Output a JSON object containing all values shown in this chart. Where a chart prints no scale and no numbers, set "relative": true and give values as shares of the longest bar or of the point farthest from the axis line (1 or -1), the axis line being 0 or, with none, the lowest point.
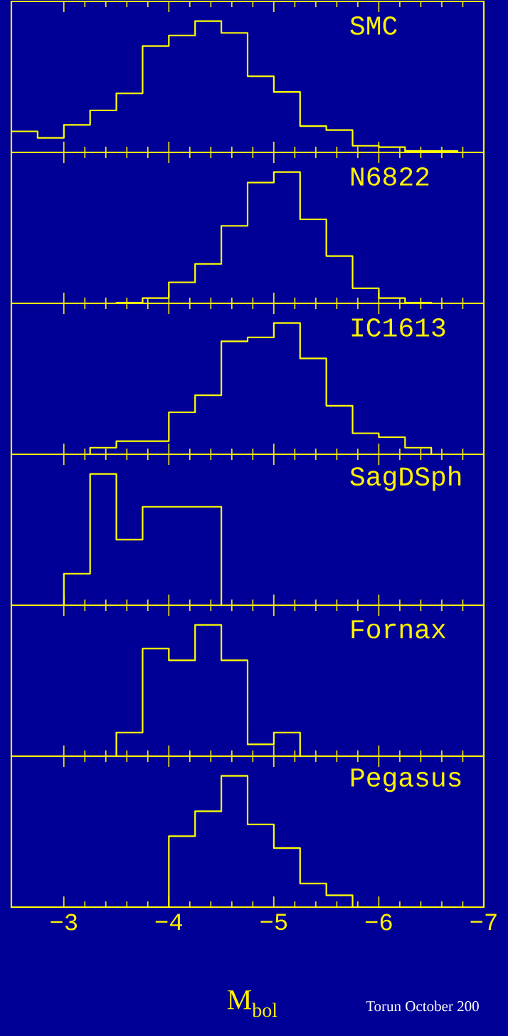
{
  "chart_data": [
    {
      "type": "step",
      "title": "SMC",
      "relative": true,
      "color": "#ffff00",
      "xlim": [
        -2.5,
        -7
      ],
      "tick_labels": false,
      "xticks": [
        -3,
        -4,
        -5,
        -6,
        -7
      ],
      "x": [
        -2.5,
        -2.75,
        -3,
        -3.25,
        -3.5,
        -3.75,
        -4,
        -4.25,
        -4.5,
        -4.75,
        -5,
        -5.25,
        -5.5,
        -5.75,
        -6,
        -6.25,
        -6.5,
        -6.75
      ],
      "values": [
        0.16,
        0.11,
        0.21,
        0.32,
        0.45,
        0.81,
        0.89,
        1,
        0.91,
        0.58,
        0.46,
        0.2,
        0.17,
        0.05,
        0.04,
        0.01,
        0.01,
        0
      ]
    },
    {
      "type": "step",
      "title": "N6822",
      "relative": true,
      "color": "#ffff00",
      "xlim": [
        -2.5,
        -7
      ],
      "tick_labels": false,
      "xticks": [
        -3,
        -4,
        -5,
        -6,
        -7
      ],
      "x": [
        -2.5,
        -2.75,
        -3,
        -3.25,
        -3.5,
        -3.75,
        -4,
        -4.25,
        -4.5,
        -4.75,
        -5,
        -5.25,
        -5.5,
        -5.75,
        -6,
        -6.25,
        -6.5,
        -6.75
      ],
      "values": [
        0,
        0,
        0,
        0,
        0.005,
        0.04,
        0.16,
        0.3,
        0.59,
        0.92,
        1,
        0.64,
        0.36,
        0.115,
        0.04,
        0.005,
        0,
        0
      ]
    },
    {
      "type": "step",
      "title": "IC1613",
      "relative": true,
      "color": "#ffff00",
      "xlim": [
        -2.5,
        -7
      ],
      "tick_labels": false,
      "xticks": [
        -3,
        -4,
        -5,
        -6,
        -7
      ],
      "x": [
        -2.5,
        -2.75,
        -3,
        -3.25,
        -3.5,
        -3.75,
        -4,
        -4.25,
        -4.5,
        -4.75,
        -5,
        -5.25,
        -5.5,
        -5.75,
        -6,
        -6.25,
        -6.5,
        -6.75
      ],
      "values": [
        0,
        0,
        0,
        0.05,
        0.1,
        0.1,
        0.32,
        0.45,
        0.86,
        0.89,
        1,
        0.73,
        0.37,
        0.16,
        0.13,
        0.05,
        0,
        0
      ]
    },
    {
      "type": "step",
      "title": "SagDSph",
      "relative": true,
      "color": "#ffff00",
      "xlim": [
        -2.5,
        -7
      ],
      "tick_labels": false,
      "xticks": [
        -3,
        -4,
        -5,
        -6,
        -7
      ],
      "x": [
        -2.5,
        -2.75,
        -3,
        -3.25,
        -3.5,
        -3.75,
        -4,
        -4.25,
        -4.5,
        -4.75,
        -5,
        -5.25,
        -5.5,
        -5.75,
        -6,
        -6.25,
        -6.5,
        -6.75
      ],
      "values": [
        0,
        0,
        0.24,
        1,
        0.5,
        0.75,
        0.75,
        0.75,
        0,
        0,
        0,
        0,
        0,
        0,
        0,
        0,
        0,
        0
      ]
    },
    {
      "type": "step",
      "title": "Fornax",
      "relative": true,
      "color": "#ffff00",
      "xlim": [
        -2.5,
        -7
      ],
      "tick_labels": false,
      "xticks": [
        -3,
        -4,
        -5,
        -6,
        -7
      ],
      "x": [
        -2.5,
        -2.75,
        -3,
        -3.25,
        -3.5,
        -3.75,
        -4,
        -4.25,
        -4.5,
        -4.75,
        -5,
        -5.25,
        -5.5,
        -5.75,
        -6,
        -6.25,
        -6.5,
        -6.75
      ],
      "values": [
        0,
        0,
        0,
        0,
        0.18,
        0.82,
        0.73,
        1,
        0.73,
        0.09,
        0.18,
        0,
        0,
        0,
        0,
        0,
        0,
        0
      ]
    },
    {
      "type": "step",
      "title": "Pegasus",
      "relative": true,
      "color": "#ffff00",
      "xlim": [
        -2.5,
        -7
      ],
      "xlabel": "M$_{bol}$",
      "xticks": [
        {
          "value": -3,
          "label": "−3"
        },
        {
          "value": -4,
          "label": "−4"
        },
        {
          "value": -5,
          "label": "−5"
        },
        {
          "value": -6,
          "label": "−6"
        },
        {
          "value": -7,
          "label": "−7"
        }
      ],
      "x": [
        -2.5,
        -2.75,
        -3,
        -3.25,
        -3.5,
        -3.75,
        -4,
        -4.25,
        -4.5,
        -4.75,
        -5,
        -5.25,
        -5.5,
        -5.75,
        -6,
        -6.25,
        -6.5,
        -6.75
      ],
      "values": [
        0,
        0,
        0,
        0,
        0,
        0,
        0.54,
        0.73,
        1,
        0.63,
        0.45,
        0.18,
        0.09,
        0,
        0,
        0,
        0,
        0
      ],
      "annotations": [
        "Torun October 200"
      ]
    }
  ]
}
